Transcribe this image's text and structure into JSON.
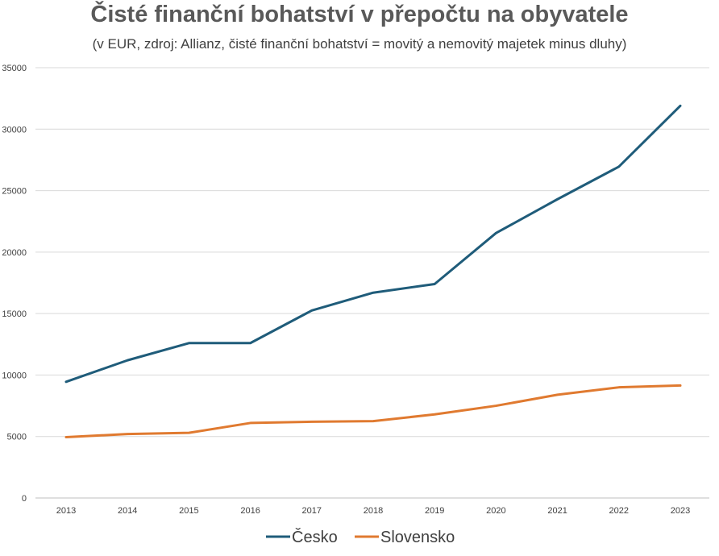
{
  "chart_data": {
    "type": "line",
    "title": "Čisté finanční bohatství v přepočtu na obyvatele",
    "subtitle": "(v EUR, zdroj: Allianz, čisté finanční bohatství = movitý a nemovitý majetek minus dluhy)",
    "xlabel": "",
    "ylabel": "",
    "categories": [
      "2013",
      "2014",
      "2015",
      "2016",
      "2017",
      "2018",
      "2019",
      "2020",
      "2021",
      "2022",
      "2023"
    ],
    "ylim": [
      0,
      35000
    ],
    "yticks": [
      0,
      5000,
      10000,
      15000,
      20000,
      25000,
      30000,
      35000
    ],
    "grid": true,
    "legend_position": "bottom",
    "series": [
      {
        "name": "Česko",
        "color": "#1f5c7a",
        "values": [
          9450,
          11200,
          12600,
          12600,
          15250,
          16700,
          17400,
          21550,
          24300,
          26950,
          31900
        ]
      },
      {
        "name": "Slovensko",
        "color": "#e07a30",
        "values": [
          4950,
          5200,
          5300,
          6100,
          6200,
          6250,
          6800,
          7500,
          8400,
          9000,
          9150
        ]
      }
    ]
  }
}
